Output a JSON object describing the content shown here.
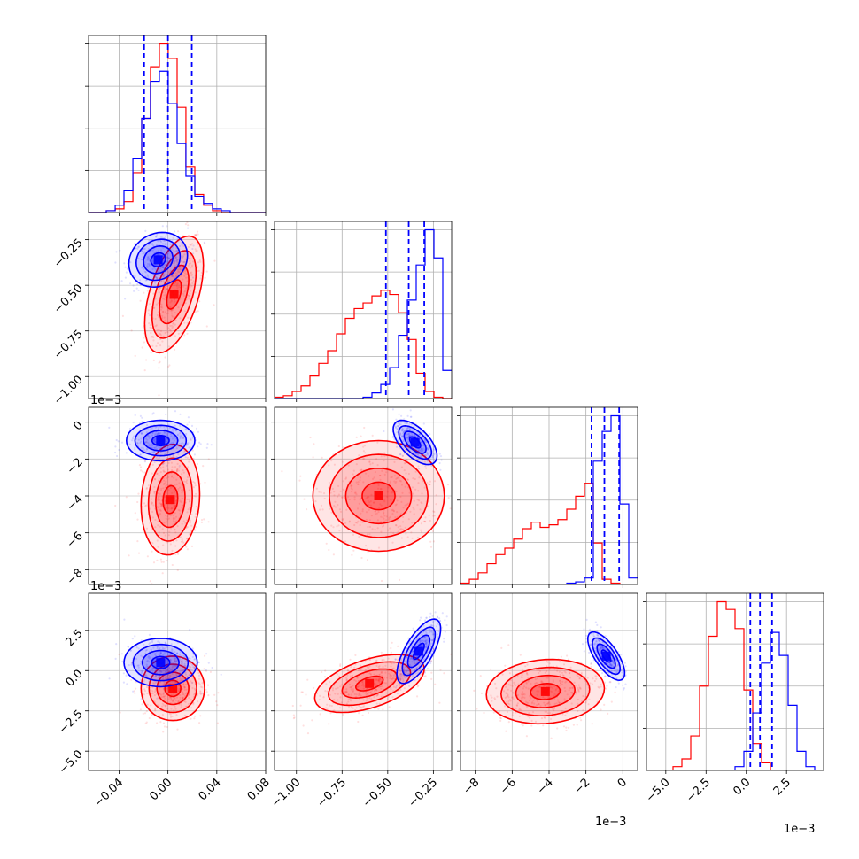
{
  "chart_data": {
    "type": "corner",
    "colors": {
      "sample_a": "#0000ff",
      "sample_b": "#ff0000",
      "grid": "#b0b0b0"
    },
    "grid": true,
    "parameters": [
      {
        "id": "p1",
        "range": [
          -0.065,
          0.08
        ],
        "ticks": [
          "-0.04",
          "0.00",
          "0.04",
          "0.08"
        ],
        "tick_values": [
          -0.04,
          0.0,
          0.04,
          0.08
        ],
        "offset": ""
      },
      {
        "id": "p2",
        "range": [
          -1.12,
          -0.15
        ],
        "ticks": [
          "-1.00",
          "-0.75",
          "-0.50",
          "-0.25"
        ],
        "tick_values": [
          -1.0,
          -0.75,
          -0.5,
          -0.25
        ],
        "offset": ""
      },
      {
        "id": "p3",
        "range": [
          -8.8,
          0.8
        ],
        "ticks": [
          "-8",
          "-6",
          "-4",
          "-2",
          "0"
        ],
        "tick_values": [
          -8,
          -6,
          -4,
          -2,
          0
        ],
        "offset": "1e−3"
      },
      {
        "id": "p4",
        "range": [
          -6.2,
          4.8
        ],
        "ticks": [
          "-5.0",
          "-2.5",
          "0.0",
          "2.5"
        ],
        "tick_values": [
          -5.0,
          -2.5,
          0.0,
          2.5
        ],
        "offset": "1e−3"
      }
    ],
    "y_offset_labels": [
      "1e−3",
      "1e−3"
    ],
    "quantiles_sample_a": [
      [
        -0.0195,
        0.0,
        0.0195
      ],
      [
        -0.51,
        -0.385,
        -0.3
      ],
      [
        -1.7,
        -1.0,
        -0.2
      ],
      [
        0.25,
        0.85,
        1.6
      ]
    ],
    "histograms": [
      {
        "edges": [
          -0.065,
          -0.0578,
          -0.0505,
          -0.0432,
          -0.036,
          -0.0287,
          -0.0215,
          -0.0143,
          -0.007,
          0.0002,
          0.0075,
          0.0147,
          0.022,
          0.0292,
          0.0365,
          0.0437,
          0.051,
          0.0582,
          0.0655,
          0.0727,
          0.08
        ],
        "sample_a": [
          0,
          0,
          1,
          4,
          12,
          30,
          52,
          72,
          78,
          60,
          38,
          20,
          9,
          5,
          2,
          1,
          0,
          0,
          0,
          0
        ],
        "sample_b": [
          0,
          0,
          1,
          2,
          6,
          22,
          52,
          80,
          93,
          85,
          58,
          25,
          10,
          4,
          1,
          0,
          0,
          0,
          0,
          0
        ]
      },
      {
        "edges": [
          -1.12,
          -1.0715,
          -1.023,
          -0.9745,
          -0.926,
          -0.8775,
          -0.829,
          -0.7805,
          -0.732,
          -0.6835,
          -0.635,
          -0.5865,
          -0.538,
          -0.4895,
          -0.441,
          -0.3925,
          -0.344,
          -0.2955,
          -0.247,
          -0.1985,
          -0.15
        ],
        "sample_a": [
          0,
          0,
          0,
          0,
          0,
          0,
          0,
          0,
          0,
          0,
          1,
          4,
          10,
          22,
          45,
          70,
          95,
          120,
          100,
          20
        ],
        "sample_b": [
          1,
          2,
          5,
          9,
          16,
          25,
          34,
          46,
          57,
          64,
          68,
          73,
          77,
          74,
          61,
          42,
          18,
          5,
          1,
          0
        ]
      },
      {
        "edges": [
          -8.8,
          -8.32,
          -7.84,
          -7.36,
          -6.88,
          -6.4,
          -5.92,
          -5.44,
          -4.96,
          -4.48,
          -4.0,
          -3.52,
          -3.04,
          -2.56,
          -2.08,
          -1.6,
          -1.12,
          -0.64,
          -0.16,
          0.32,
          0.8
        ],
        "sample_a": [
          0,
          0,
          0,
          0,
          0,
          0,
          0,
          0,
          0,
          0,
          0,
          0,
          1,
          2,
          5,
          95,
          118,
          130,
          62,
          5
        ],
        "sample_b": [
          1,
          4,
          9,
          16,
          23,
          28,
          35,
          43,
          48,
          44,
          46,
          50,
          58,
          68,
          78,
          32,
          4,
          1,
          0,
          0
        ]
      },
      {
        "edges": [
          -6.2,
          -5.65,
          -5.1,
          -4.55,
          -4.0,
          -3.45,
          -2.9,
          -2.35,
          -1.8,
          -1.25,
          -0.7,
          -0.15,
          0.4,
          0.95,
          1.5,
          2.05,
          2.6,
          3.15,
          3.7,
          4.25,
          4.8
        ],
        "sample_a": [
          0,
          0,
          0,
          0,
          0,
          0,
          0,
          0,
          0,
          0,
          1,
          5,
          15,
          28,
          36,
          30,
          17,
          5,
          1,
          0
        ],
        "sample_b": [
          0,
          0,
          0,
          1,
          3,
          9,
          22,
          35,
          44,
          42,
          37,
          21,
          7,
          2,
          0,
          0,
          0,
          0,
          0,
          0
        ]
      }
    ],
    "joint": [
      {
        "i": 0,
        "j": 1,
        "sample_a": {
          "mean": [
            -0.008,
            -0.36
          ],
          "sd": [
            0.012,
            0.075
          ],
          "rho": 0.15
        },
        "sample_b": {
          "mean": [
            0.005,
            -0.55
          ],
          "sd": [
            0.012,
            0.16
          ],
          "rho": 0.5
        }
      },
      {
        "i": 0,
        "j": 2,
        "sample_a": {
          "mean": [
            -0.006,
            -1.0
          ],
          "sd": [
            0.014,
            0.55
          ],
          "rho": 0.0
        },
        "sample_b": {
          "mean": [
            0.002,
            -4.2
          ],
          "sd": [
            0.012,
            1.5
          ],
          "rho": 0.1
        }
      },
      {
        "i": 0,
        "j": 3,
        "sample_a": {
          "mean": [
            -0.006,
            0.5
          ],
          "sd": [
            0.015,
            0.75
          ],
          "rho": 0.0
        },
        "sample_b": {
          "mean": [
            0.004,
            -1.1
          ],
          "sd": [
            0.013,
            1.0
          ],
          "rho": 0.0
        }
      },
      {
        "i": 1,
        "j": 2,
        "sample_a": {
          "mean": [
            -0.35,
            -1.1
          ],
          "sd": [
            0.06,
            0.6
          ],
          "rho": -0.6
        },
        "sample_b": {
          "mean": [
            -0.55,
            -4.0
          ],
          "sd": [
            0.18,
            1.5
          ],
          "rho": 0.0
        }
      },
      {
        "i": 1,
        "j": 3,
        "sample_a": {
          "mean": [
            -0.33,
            1.2
          ],
          "sd": [
            0.06,
            1.0
          ],
          "rho": 0.7
        },
        "sample_b": {
          "mean": [
            -0.6,
            -0.8
          ],
          "sd": [
            0.15,
            0.9
          ],
          "rho": 0.5
        }
      },
      {
        "i": 2,
        "j": 3,
        "sample_a": {
          "mean": [
            -0.9,
            0.9
          ],
          "sd": [
            0.5,
            0.75
          ],
          "rho": -0.7
        },
        "sample_b": {
          "mean": [
            -4.2,
            -1.3
          ],
          "sd": [
            1.6,
            1.0
          ],
          "rho": 0.1
        }
      }
    ]
  }
}
